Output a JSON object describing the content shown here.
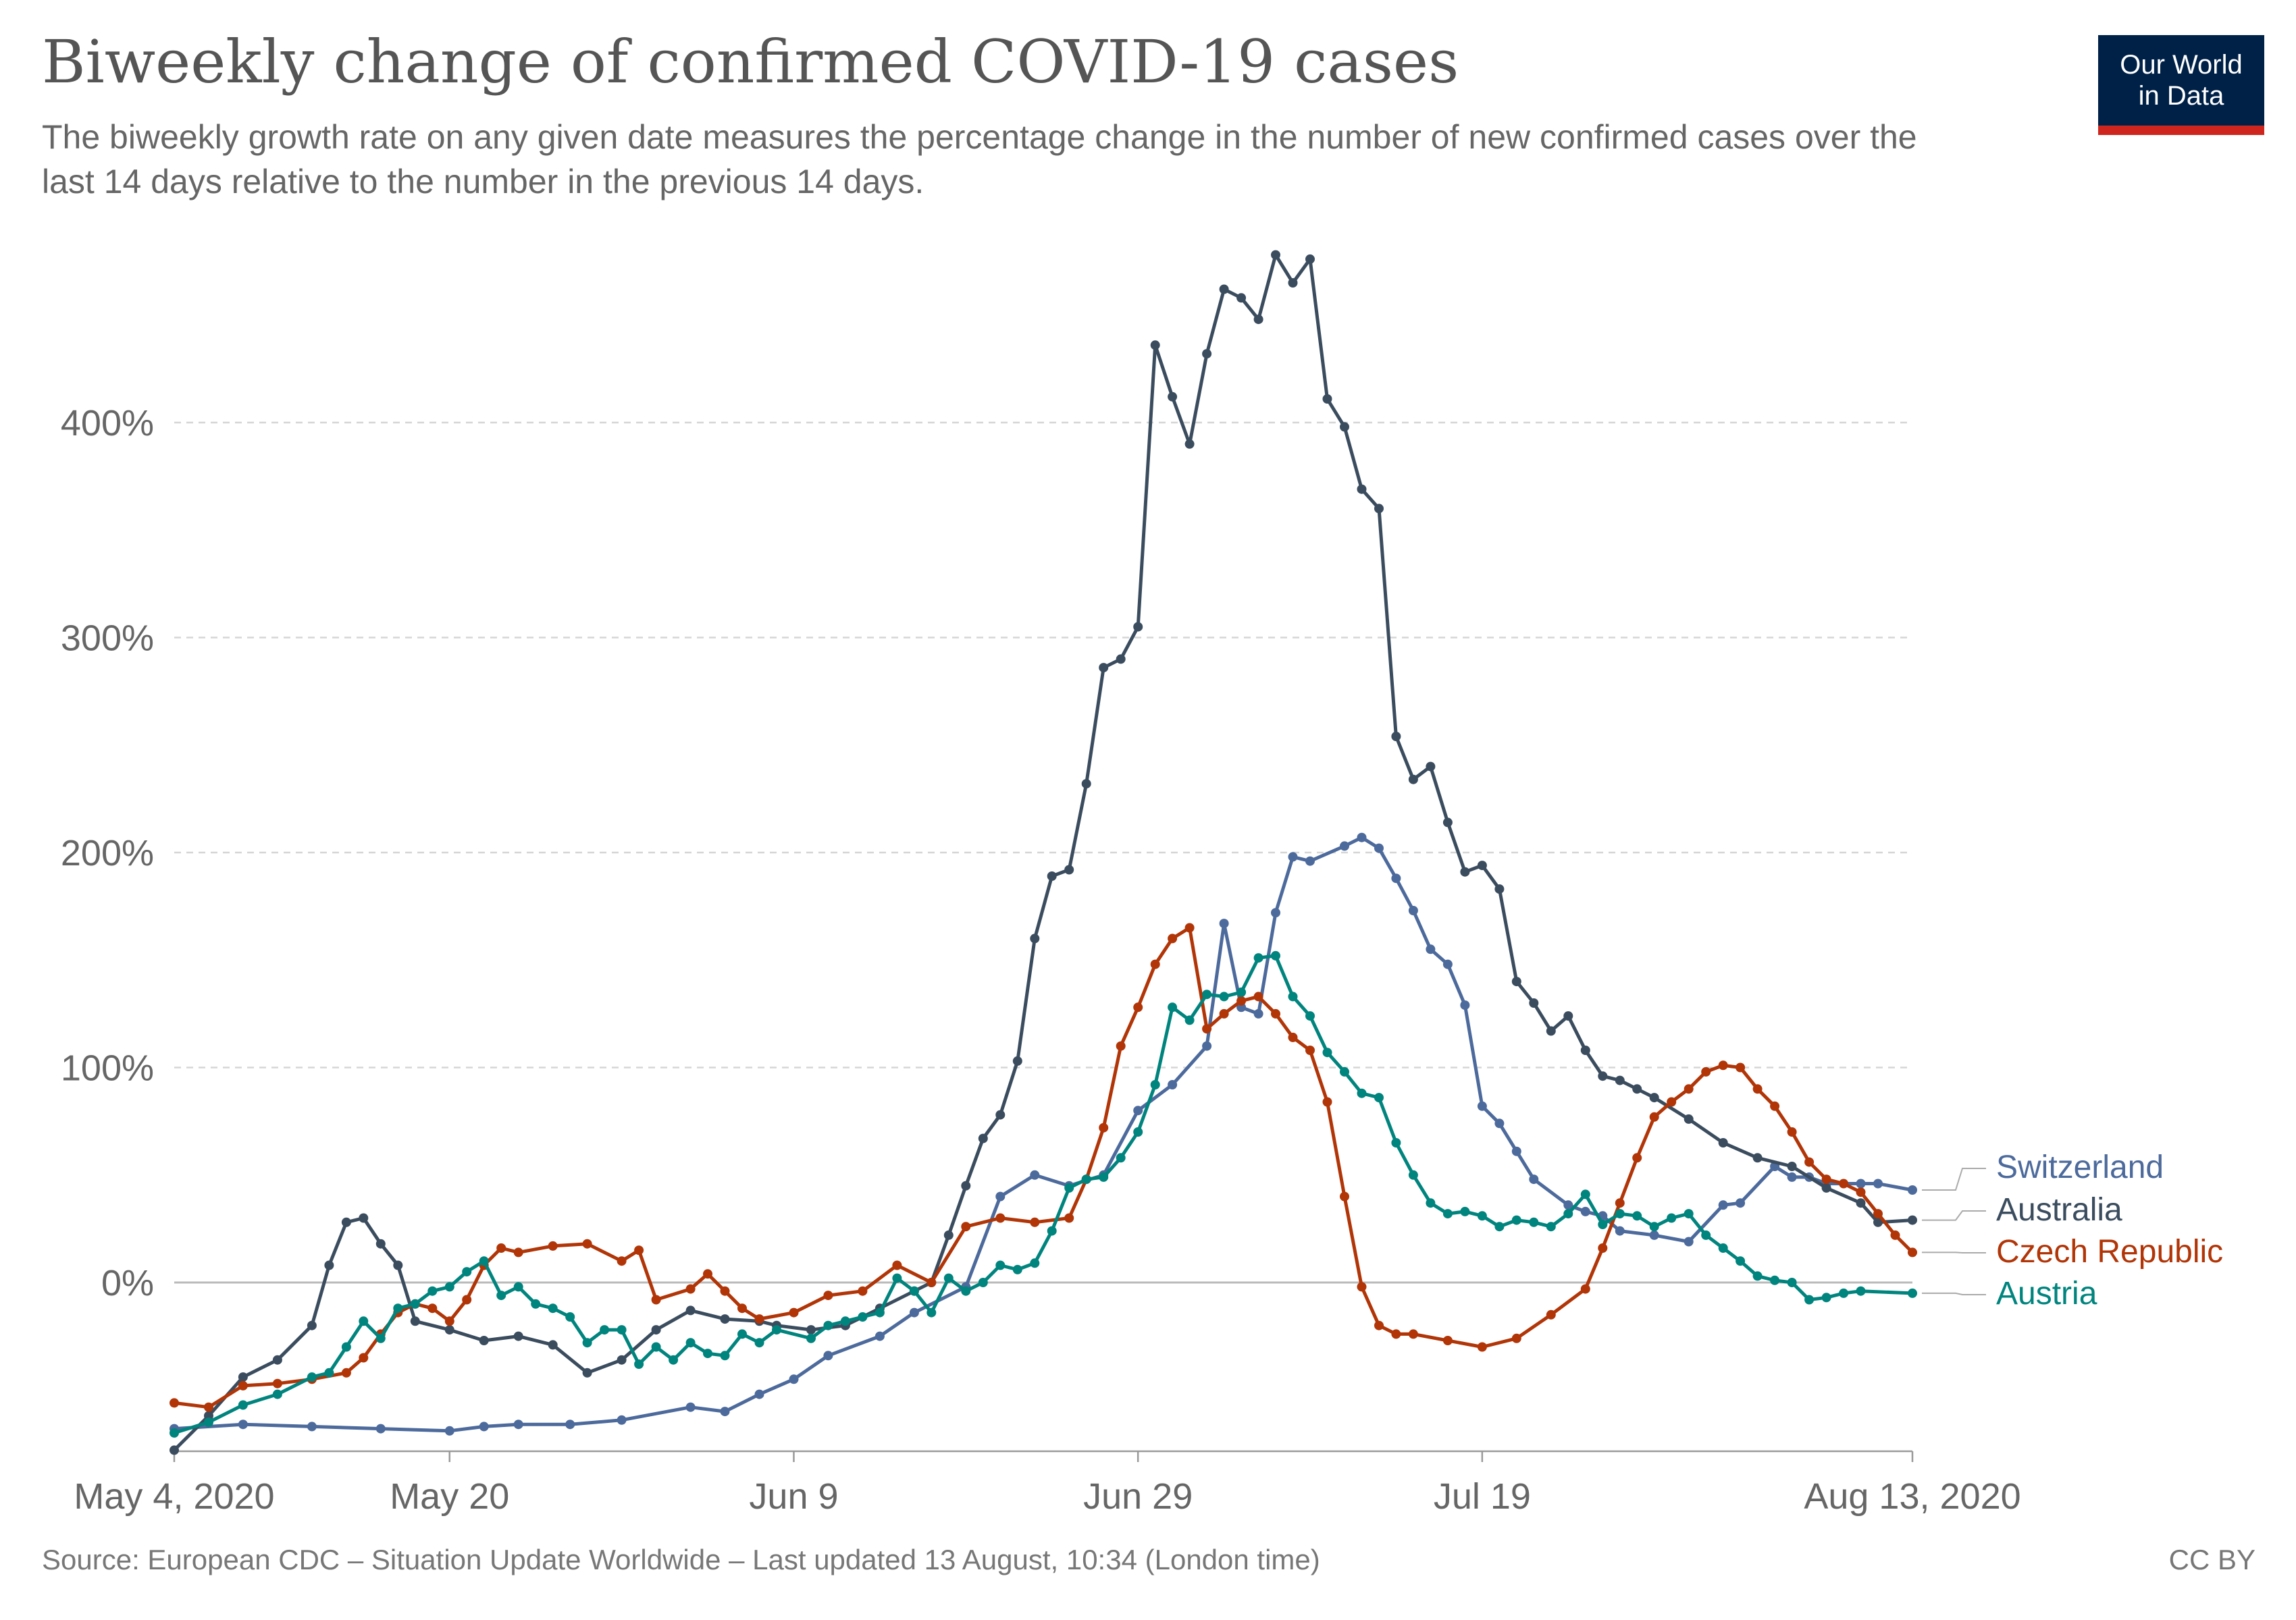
{
  "header": {
    "title": "Biweekly change of confirmed COVID-19 cases",
    "subtitle": "The biweekly growth rate on any given date measures the percentage change in the number of new confirmed cases over the last 14 days relative to the number in the previous 14 days."
  },
  "logo": {
    "line1": "Our World",
    "line2": "in Data"
  },
  "footer": {
    "source": "Source: European CDC – Situation Update Worldwide – Last updated 13 August, 10:34 (London time)",
    "license": "CC BY"
  },
  "chart_data": {
    "type": "line",
    "title": "Biweekly change of confirmed COVID-19 cases",
    "xlabel": "",
    "ylabel": "",
    "ylim": [
      -80,
      500
    ],
    "xlim": [
      0,
      101
    ],
    "grid": true,
    "legend": "right, labels at line ends",
    "y_ticks": [
      {
        "value": 0,
        "label": "0%"
      },
      {
        "value": 100,
        "label": "100%"
      },
      {
        "value": 200,
        "label": "200%"
      },
      {
        "value": 300,
        "label": "300%"
      },
      {
        "value": 400,
        "label": "400%"
      }
    ],
    "x_ticks": [
      {
        "day": 0,
        "label": "May 4, 2020"
      },
      {
        "day": 16,
        "label": "May 20"
      },
      {
        "day": 36,
        "label": "Jun 9"
      },
      {
        "day": 56,
        "label": "Jun 29"
      },
      {
        "day": 76,
        "label": "Jul 19"
      },
      {
        "day": 101,
        "label": "Aug 13, 2020"
      }
    ],
    "x_unit": "days since May 4, 2020",
    "series": [
      {
        "name": "Switzerland",
        "color": "#4c6a9c",
        "points": [
          [
            0,
            -68
          ],
          [
            4,
            -66
          ],
          [
            8,
            -67
          ],
          [
            12,
            -68
          ],
          [
            16,
            -69
          ],
          [
            18,
            -67
          ],
          [
            20,
            -66
          ],
          [
            23,
            -66
          ],
          [
            26,
            -64
          ],
          [
            30,
            -58
          ],
          [
            32,
            -60
          ],
          [
            34,
            -52
          ],
          [
            36,
            -45
          ],
          [
            38,
            -34
          ],
          [
            41,
            -25
          ],
          [
            43,
            -14
          ],
          [
            46,
            -2
          ],
          [
            48,
            40
          ],
          [
            50,
            50
          ],
          [
            52,
            45
          ],
          [
            54,
            50
          ],
          [
            56,
            80
          ],
          [
            58,
            92
          ],
          [
            60,
            110
          ],
          [
            61,
            167
          ],
          [
            62,
            128
          ],
          [
            63,
            125
          ],
          [
            64,
            172
          ],
          [
            65,
            198
          ],
          [
            66,
            196
          ],
          [
            68,
            203
          ],
          [
            69,
            207
          ],
          [
            70,
            202
          ],
          [
            71,
            188
          ],
          [
            72,
            173
          ],
          [
            73,
            155
          ],
          [
            74,
            148
          ],
          [
            75,
            129
          ],
          [
            76,
            82
          ],
          [
            77,
            74
          ],
          [
            78,
            61
          ],
          [
            79,
            48
          ],
          [
            81,
            36
          ],
          [
            82,
            33
          ],
          [
            83,
            31
          ],
          [
            84,
            24
          ],
          [
            86,
            22
          ],
          [
            88,
            19
          ],
          [
            90,
            36
          ],
          [
            91,
            37
          ],
          [
            93,
            54
          ],
          [
            94,
            49
          ],
          [
            95,
            49
          ],
          [
            96,
            46
          ],
          [
            98,
            46
          ],
          [
            99,
            46
          ],
          [
            101,
            43
          ]
        ]
      },
      {
        "name": "Australia",
        "color": "#3a4c5e",
        "points": [
          [
            0,
            -78
          ],
          [
            2,
            -62
          ],
          [
            4,
            -44
          ],
          [
            6,
            -36
          ],
          [
            8,
            -20
          ],
          [
            9,
            8
          ],
          [
            10,
            28
          ],
          [
            11,
            30
          ],
          [
            12,
            18
          ],
          [
            13,
            8
          ],
          [
            14,
            -18
          ],
          [
            16,
            -22
          ],
          [
            18,
            -27
          ],
          [
            20,
            -25
          ],
          [
            22,
            -29
          ],
          [
            24,
            -42
          ],
          [
            26,
            -36
          ],
          [
            28,
            -22
          ],
          [
            30,
            -13
          ],
          [
            32,
            -17
          ],
          [
            34,
            -18
          ],
          [
            35,
            -20
          ],
          [
            37,
            -22
          ],
          [
            39,
            -20
          ],
          [
            41,
            -12
          ],
          [
            43,
            -4
          ],
          [
            44,
            0
          ],
          [
            45,
            22
          ],
          [
            46,
            45
          ],
          [
            47,
            67
          ],
          [
            48,
            78
          ],
          [
            49,
            103
          ],
          [
            50,
            160
          ],
          [
            51,
            189
          ],
          [
            52,
            192
          ],
          [
            53,
            232
          ],
          [
            54,
            286
          ],
          [
            55,
            290
          ],
          [
            56,
            305
          ],
          [
            57,
            436
          ],
          [
            58,
            412
          ],
          [
            59,
            390
          ],
          [
            60,
            432
          ],
          [
            61,
            462
          ],
          [
            62,
            458
          ],
          [
            63,
            448
          ],
          [
            64,
            478
          ],
          [
            65,
            465
          ],
          [
            66,
            476
          ],
          [
            67,
            411
          ],
          [
            68,
            398
          ],
          [
            69,
            369
          ],
          [
            70,
            360
          ],
          [
            71,
            254
          ],
          [
            72,
            234
          ],
          [
            73,
            240
          ],
          [
            74,
            214
          ],
          [
            75,
            191
          ],
          [
            76,
            194
          ],
          [
            77,
            183
          ],
          [
            78,
            140
          ],
          [
            79,
            130
          ],
          [
            80,
            117
          ],
          [
            81,
            124
          ],
          [
            82,
            108
          ],
          [
            83,
            96
          ],
          [
            84,
            94
          ],
          [
            85,
            90
          ],
          [
            86,
            86
          ],
          [
            88,
            76
          ],
          [
            90,
            65
          ],
          [
            92,
            58
          ],
          [
            94,
            54
          ],
          [
            96,
            44
          ],
          [
            98,
            37
          ],
          [
            99,
            28
          ],
          [
            101,
            29
          ]
        ]
      },
      {
        "name": "Czech Republic",
        "color": "#b13507",
        "points": [
          [
            0,
            -56
          ],
          [
            2,
            -58
          ],
          [
            4,
            -48
          ],
          [
            6,
            -47
          ],
          [
            8,
            -45
          ],
          [
            10,
            -42
          ],
          [
            11,
            -35
          ],
          [
            12,
            -24
          ],
          [
            13,
            -14
          ],
          [
            14,
            -10
          ],
          [
            15,
            -12
          ],
          [
            16,
            -18
          ],
          [
            17,
            -8
          ],
          [
            18,
            8
          ],
          [
            19,
            16
          ],
          [
            20,
            14
          ],
          [
            22,
            17
          ],
          [
            24,
            18
          ],
          [
            26,
            10
          ],
          [
            27,
            15
          ],
          [
            28,
            -8
          ],
          [
            30,
            -3
          ],
          [
            31,
            4
          ],
          [
            32,
            -4
          ],
          [
            33,
            -12
          ],
          [
            34,
            -17
          ],
          [
            36,
            -14
          ],
          [
            38,
            -6
          ],
          [
            40,
            -4
          ],
          [
            42,
            8
          ],
          [
            44,
            0
          ],
          [
            46,
            26
          ],
          [
            48,
            30
          ],
          [
            50,
            28
          ],
          [
            52,
            30
          ],
          [
            53,
            48
          ],
          [
            54,
            72
          ],
          [
            55,
            110
          ],
          [
            56,
            128
          ],
          [
            57,
            148
          ],
          [
            58,
            160
          ],
          [
            59,
            165
          ],
          [
            60,
            118
          ],
          [
            61,
            125
          ],
          [
            62,
            131
          ],
          [
            63,
            133
          ],
          [
            64,
            125
          ],
          [
            65,
            114
          ],
          [
            66,
            108
          ],
          [
            67,
            84
          ],
          [
            68,
            40
          ],
          [
            69,
            -2
          ],
          [
            70,
            -20
          ],
          [
            71,
            -24
          ],
          [
            72,
            -24
          ],
          [
            74,
            -27
          ],
          [
            76,
            -30
          ],
          [
            78,
            -26
          ],
          [
            80,
            -15
          ],
          [
            82,
            -3
          ],
          [
            83,
            16
          ],
          [
            84,
            37
          ],
          [
            85,
            58
          ],
          [
            86,
            77
          ],
          [
            87,
            84
          ],
          [
            88,
            90
          ],
          [
            89,
            98
          ],
          [
            90,
            101
          ],
          [
            91,
            100
          ],
          [
            92,
            90
          ],
          [
            93,
            82
          ],
          [
            94,
            70
          ],
          [
            95,
            56
          ],
          [
            96,
            48
          ],
          [
            97,
            46
          ],
          [
            98,
            42
          ],
          [
            99,
            32
          ],
          [
            100,
            22
          ],
          [
            101,
            14
          ]
        ]
      },
      {
        "name": "Austria",
        "color": "#00847e",
        "points": [
          [
            0,
            -70
          ],
          [
            2,
            -65
          ],
          [
            4,
            -57
          ],
          [
            6,
            -52
          ],
          [
            8,
            -44
          ],
          [
            9,
            -42
          ],
          [
            10,
            -30
          ],
          [
            11,
            -18
          ],
          [
            12,
            -26
          ],
          [
            13,
            -12
          ],
          [
            14,
            -10
          ],
          [
            15,
            -4
          ],
          [
            16,
            -2
          ],
          [
            17,
            5
          ],
          [
            18,
            10
          ],
          [
            19,
            -6
          ],
          [
            20,
            -2
          ],
          [
            21,
            -10
          ],
          [
            22,
            -12
          ],
          [
            23,
            -16
          ],
          [
            24,
            -28
          ],
          [
            25,
            -22
          ],
          [
            26,
            -22
          ],
          [
            27,
            -38
          ],
          [
            28,
            -30
          ],
          [
            29,
            -36
          ],
          [
            30,
            -28
          ],
          [
            31,
            -33
          ],
          [
            32,
            -34
          ],
          [
            33,
            -24
          ],
          [
            34,
            -28
          ],
          [
            35,
            -22
          ],
          [
            37,
            -26
          ],
          [
            38,
            -20
          ],
          [
            39,
            -18
          ],
          [
            40,
            -16
          ],
          [
            41,
            -14
          ],
          [
            42,
            2
          ],
          [
            43,
            -4
          ],
          [
            44,
            -14
          ],
          [
            45,
            2
          ],
          [
            46,
            -4
          ],
          [
            47,
            0
          ],
          [
            48,
            8
          ],
          [
            49,
            6
          ],
          [
            50,
            9
          ],
          [
            51,
            24
          ],
          [
            52,
            44
          ],
          [
            53,
            48
          ],
          [
            54,
            49
          ],
          [
            55,
            58
          ],
          [
            56,
            70
          ],
          [
            57,
            92
          ],
          [
            58,
            128
          ],
          [
            59,
            122
          ],
          [
            60,
            134
          ],
          [
            61,
            133
          ],
          [
            62,
            135
          ],
          [
            63,
            151
          ],
          [
            64,
            152
          ],
          [
            65,
            133
          ],
          [
            66,
            124
          ],
          [
            67,
            107
          ],
          [
            68,
            98
          ],
          [
            69,
            88
          ],
          [
            70,
            86
          ],
          [
            71,
            65
          ],
          [
            72,
            50
          ],
          [
            73,
            37
          ],
          [
            74,
            32
          ],
          [
            75,
            33
          ],
          [
            76,
            31
          ],
          [
            77,
            26
          ],
          [
            78,
            29
          ],
          [
            79,
            28
          ],
          [
            80,
            26
          ],
          [
            81,
            32
          ],
          [
            82,
            41
          ],
          [
            83,
            27
          ],
          [
            84,
            32
          ],
          [
            85,
            31
          ],
          [
            86,
            26
          ],
          [
            87,
            30
          ],
          [
            88,
            32
          ],
          [
            89,
            22
          ],
          [
            90,
            16
          ],
          [
            91,
            10
          ],
          [
            92,
            3
          ],
          [
            93,
            1
          ],
          [
            94,
            0
          ],
          [
            95,
            -8
          ],
          [
            96,
            -7
          ],
          [
            97,
            -5
          ],
          [
            98,
            -4
          ],
          [
            101,
            -5
          ]
        ]
      }
    ]
  }
}
